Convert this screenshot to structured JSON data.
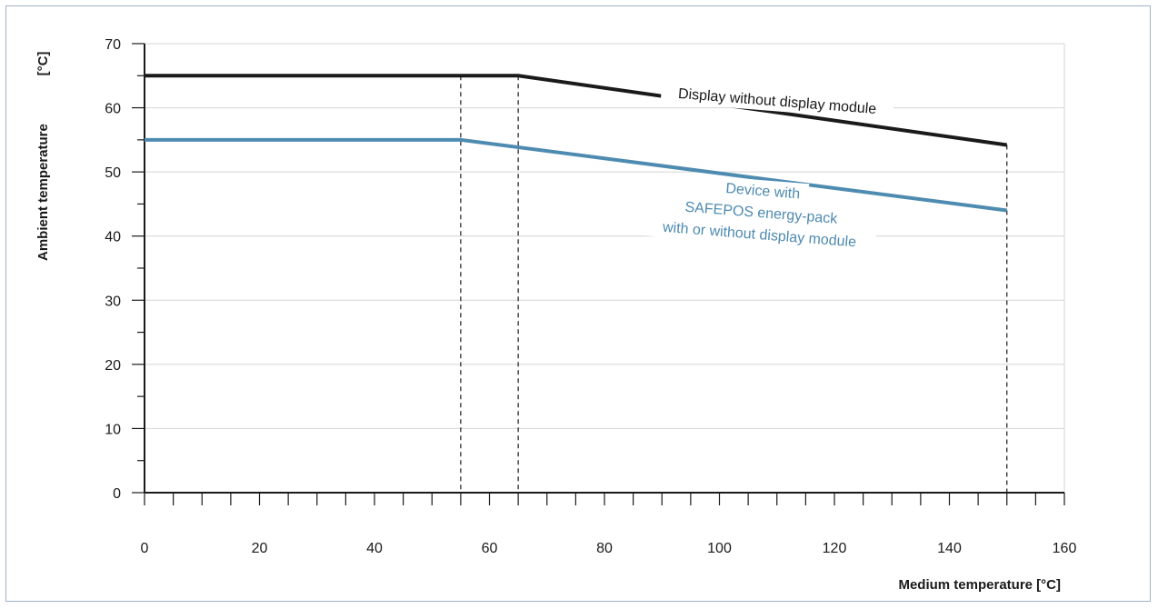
{
  "chart_data": {
    "type": "line",
    "xlabel": "Medium temperature [°C]",
    "ylabel": "Ambient temperature",
    "ylabel_unit": "[°C]",
    "xlim": [
      0,
      160
    ],
    "ylim": [
      0,
      70
    ],
    "x_ticks": [
      0,
      20,
      40,
      60,
      80,
      100,
      120,
      140,
      160
    ],
    "y_ticks": [
      0,
      10,
      20,
      30,
      40,
      50,
      60,
      70
    ],
    "grid": true,
    "series": [
      {
        "label_lines": [
          "Display without display module"
        ],
        "color": "#1a1a1a",
        "points": [
          [
            0,
            65
          ],
          [
            65,
            65
          ],
          [
            150,
            54.2
          ]
        ]
      },
      {
        "label_lines": [
          "Device with",
          "SAFEPOS  energy-pack",
          "with or without display module"
        ],
        "color": "#4e8bb0",
        "points": [
          [
            0,
            55
          ],
          [
            55,
            55
          ],
          [
            150,
            44
          ]
        ]
      }
    ],
    "reference_lines_x": [
      55,
      65,
      150
    ]
  }
}
